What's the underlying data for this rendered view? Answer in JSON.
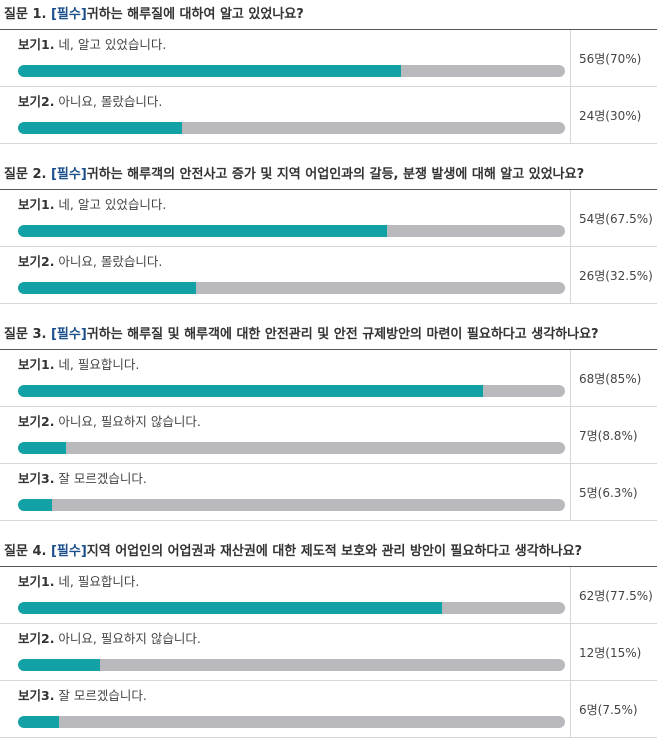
{
  "colors": {
    "bar_fill": "#12a2a6",
    "bar_track": "#b9b9bd",
    "tag": "#1a4f8b"
  },
  "questions": [
    {
      "prefix": "질문 1. ",
      "tag": "[필수]",
      "text": "귀하는 해루질에 대하여 알고 있었나요?",
      "options": [
        {
          "num": "보기1.",
          "label": " 네, 알고 있었습니다.",
          "count": "56명(70%)",
          "ratio": 0.7
        },
        {
          "num": "보기2.",
          "label": " 아니요, 몰랐습니다.",
          "count": "24명(30%)",
          "ratio": 0.3
        }
      ]
    },
    {
      "prefix": "질문 2. ",
      "tag": "[필수]",
      "text": "귀하는 해루객의 안전사고 증가 및 지역 어업인과의 갈등, 분쟁 발생에 대해 알고 있었나요?",
      "options": [
        {
          "num": "보기1.",
          "label": " 네, 알고 있었습니다.",
          "count": "54명(67.5%)",
          "ratio": 0.675
        },
        {
          "num": "보기2.",
          "label": " 아니요, 몰랐습니다.",
          "count": "26명(32.5%)",
          "ratio": 0.325
        }
      ]
    },
    {
      "prefix": "질문 3. ",
      "tag": "[필수]",
      "text": "귀하는 해루질 및 해루객에 대한 안전관리 및 안전 규제방안의 마련이 필요하다고 생각하나요?",
      "options": [
        {
          "num": "보기1.",
          "label": " 네, 필요합니다.",
          "count": "68명(85%)",
          "ratio": 0.85
        },
        {
          "num": "보기2.",
          "label": " 아니요, 필요하지 않습니다.",
          "count": "7명(8.8%)",
          "ratio": 0.088
        },
        {
          "num": "보기3.",
          "label": " 잘 모르겠습니다.",
          "count": "5명(6.3%)",
          "ratio": 0.063
        }
      ]
    },
    {
      "prefix": "질문 4. ",
      "tag": "[필수]",
      "text": "지역 어업인의 어업권과 재산권에 대한 제도적 보호와 관리 방안이 필요하다고 생각하나요?",
      "options": [
        {
          "num": "보기1.",
          "label": " 네, 필요합니다.",
          "count": "62명(77.5%)",
          "ratio": 0.775
        },
        {
          "num": "보기2.",
          "label": " 아니요, 필요하지 않습니다.",
          "count": "12명(15%)",
          "ratio": 0.15
        },
        {
          "num": "보기3.",
          "label": " 잘 모르겠습니다.",
          "count": "6명(7.5%)",
          "ratio": 0.075
        }
      ]
    }
  ]
}
